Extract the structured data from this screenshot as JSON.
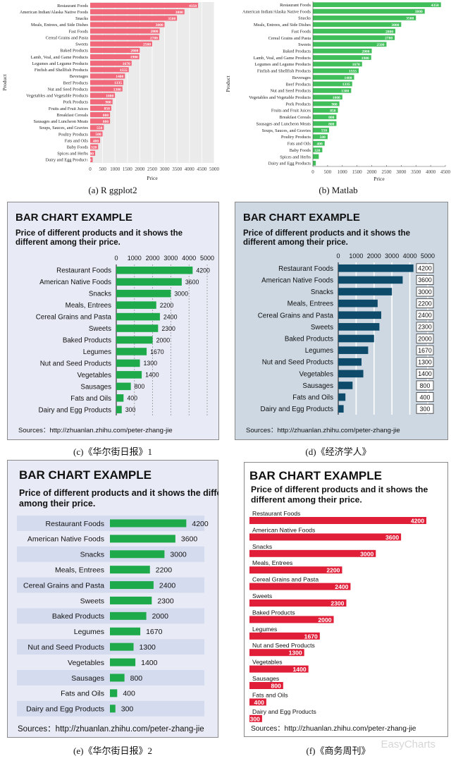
{
  "captions": {
    "a": "(a) R ggplot2",
    "b": "(b) Matlab",
    "c": "(c)《华尔街日报》1",
    "d": "(d)《经济学人》",
    "e": "(e)《华尔街日报》2",
    "f": "(f)《商务周刊》"
  },
  "watermark": "EasyCharts",
  "colors": {
    "ggplot_bar": "#f0687a",
    "ggplot_bg": "#ebebeb",
    "matlab_bar": "#3fbe5a",
    "wsj_bar": "#1eaa4b",
    "wsj_bg": "#e8ebf5",
    "wsj2_stripe": "#d5dbee",
    "economist_bg": "#cdd8e3",
    "economist_bar": "#0e4a6a",
    "bw_bar": "#e01e38"
  },
  "chart_data": [
    {
      "id": "a",
      "type": "bar",
      "orientation": "horizontal",
      "categories": [
        "Restaurant Foods",
        "American Indian/Alaska Native Foods",
        "Snacks",
        "Meals, Entrees, and Side Dishes",
        "Fast Foods",
        "Cereal Grains and Pasta",
        "Sweets",
        "Baked Products",
        "Lamb, Veal, and Game Products",
        "Legumes and Legume Products",
        "Finfish and Shellfish Products",
        "Beverages",
        "Beef Products",
        "Nut and Seed Products",
        "Vegetables and Vegetable Products",
        "Pork Products",
        "Fruits and Fruit Juices",
        "Breakfast Cereals",
        "Sausages and Luncheon Meats",
        "Soups, Sauces, and Gravies",
        "Poultry Products",
        "Fats and Oils",
        "Baby Foods",
        "Spices and Herbs",
        "Dairy and Egg Products"
      ],
      "values": [
        4350,
        3800,
        3500,
        3000,
        2800,
        2780,
        2500,
        2000,
        1980,
        1670,
        1555,
        1400,
        1335,
        1300,
        1000,
        900,
        850,
        800,
        800,
        550,
        500,
        400,
        320,
        200,
        100
      ],
      "labels": [
        "4350",
        "3800",
        "3500",
        "3000",
        "2800",
        "2780",
        "2500",
        "2000",
        "1980",
        "1670",
        "1555",
        "1400",
        "1335",
        "1300",
        "1000",
        "900",
        "850",
        "800",
        "800",
        "550",
        "500",
        "400",
        "320",
        "200",
        "100"
      ],
      "xlabel": "Price",
      "ylabel": "Product",
      "xlim": [
        0,
        5000
      ],
      "xticks": [
        "0",
        "500",
        "1000",
        "1500",
        "2000",
        "2500",
        "3000",
        "3500",
        "4000",
        "4500",
        "5000"
      ],
      "grid": true
    },
    {
      "id": "b",
      "type": "bar",
      "orientation": "horizontal",
      "categories": [
        "Restaurant Foods",
        "American Indian/Alaska Native Foods",
        "Snacks",
        "Meals, Entrees, and Side Dishes",
        "Fast Foods",
        "Cereal Grains and Pasta",
        "Sweets",
        "Baked Products",
        "Lamb, Veal, and Game Products",
        "Legumes and Legume Products",
        "Finfish and Shellfish Products",
        "Beverages",
        "Beef Products",
        "Nut and Seed Products",
        "Vegetables and Vegetable Products",
        "Pork Products",
        "Fruits and Fruit Juices",
        "Breakfast Cereals",
        "Sausages and Luncheon Meats",
        "Soups, Sauces, and Gravies",
        "Poultry Products",
        "Fats and Oils",
        "Baby Foods",
        "Spices and Herbs",
        "Dairy and Egg Products"
      ],
      "values": [
        4350,
        3800,
        3500,
        3000,
        2800,
        2780,
        2500,
        2000,
        1980,
        1670,
        1555,
        1400,
        1335,
        1300,
        1000,
        900,
        850,
        800,
        800,
        550,
        500,
        400,
        320,
        200,
        100
      ],
      "labels": [
        "4350",
        "3800",
        "3500",
        "3000",
        "2800",
        "2780",
        "2500",
        "2000",
        "1980",
        "1670",
        "1555",
        "1400",
        "1335",
        "1300",
        "1000",
        "900",
        "850",
        "800",
        "800",
        "550",
        "500",
        "400",
        "320",
        "",
        ""
      ],
      "xlabel": "Price",
      "ylabel": "Product",
      "xlim": [
        0,
        4500
      ],
      "xticks": [
        "0",
        "500",
        "1000",
        "1500",
        "2000",
        "2500",
        "3000",
        "3500",
        "4000",
        "4500"
      ],
      "grid": false
    },
    {
      "id": "c",
      "type": "bar",
      "orientation": "horizontal",
      "title": "BAR CHART EXAMPLE",
      "subtitle": "Price of different products and it shows the different among their price.",
      "source": "Sources：http://zhuanlan.zhihu.com/peter-zhang-jie",
      "categories": [
        "Restaurant Foods",
        "American Native Foods",
        "Snacks",
        "Meals, Entrees",
        "Cereal Grains and Pasta",
        "Sweets",
        "Baked Products",
        "Legumes",
        "Nut and Seed Products",
        "Vegetables",
        "Sausages",
        "Fats and Oils",
        "Dairy and Egg Products"
      ],
      "values": [
        4200,
        3600,
        3000,
        2200,
        2400,
        2300,
        2000,
        1670,
        1300,
        1400,
        800,
        400,
        300
      ],
      "labels": [
        "4200",
        "3600",
        "3000",
        "2200",
        "2400",
        "2300",
        "2000",
        "1670",
        "1300",
        "1400",
        "800",
        "400",
        "300"
      ],
      "xlim": [
        0,
        5000
      ],
      "xticks": [
        "0",
        "1000",
        "2000",
        "3000",
        "4000",
        "5000"
      ],
      "grid": true
    },
    {
      "id": "d",
      "type": "bar",
      "orientation": "horizontal",
      "title": "BAR CHART EXAMPLE",
      "subtitle": "Price of different products and it shows the different among their price.",
      "source": "Sources：http://zhuanlan.zhihu.com/peter-zhang-jie",
      "categories": [
        "Restaurant Foods",
        "American Native Foods",
        "Snacks",
        "Meals, Entrees",
        "Cereal Grains and Pasta",
        "Sweets",
        "Baked Products",
        "Legumes",
        "Nut and Seed Products",
        "Vegetables",
        "Sausages",
        "Fats and Oils",
        "Dairy and Egg Products"
      ],
      "values": [
        4200,
        3600,
        3000,
        2200,
        2400,
        2300,
        2000,
        1670,
        1300,
        1400,
        800,
        400,
        300
      ],
      "labels": [
        "4200",
        "3600",
        "3000",
        "2200",
        "2400",
        "2300",
        "2000",
        "1670",
        "1300",
        "1400",
        "800",
        "400",
        "300"
      ],
      "xlim": [
        0,
        5000
      ],
      "xticks": [
        "0",
        "1000",
        "2000",
        "3000",
        "4000",
        "5000"
      ],
      "grid": true
    },
    {
      "id": "e",
      "type": "bar",
      "orientation": "horizontal",
      "title": "BAR CHART EXAMPLE",
      "subtitle": "Price of different products and it shows the different among their price.",
      "source": "Sources：http://zhuanlan.zhihu.com/peter-zhang-jie",
      "categories": [
        "Restaurant Foods",
        "American Native Foods",
        "Snacks",
        "Meals, Entrees",
        "Cereal Grains and Pasta",
        "Sweets",
        "Baked Products",
        "Legumes",
        "Nut and Seed Products",
        "Vegetables",
        "Sausages",
        "Fats and Oils",
        "Dairy and Egg Products"
      ],
      "values": [
        4200,
        3600,
        3000,
        2200,
        2400,
        2300,
        2000,
        1670,
        1300,
        1400,
        800,
        400,
        300
      ],
      "labels": [
        "4200",
        "3600",
        "3000",
        "2200",
        "2400",
        "2300",
        "2000",
        "1670",
        "1300",
        "1400",
        "800",
        "400",
        "300"
      ],
      "xlim": [
        0,
        5000
      ],
      "grid": false
    },
    {
      "id": "f",
      "type": "bar",
      "orientation": "horizontal",
      "title": "BAR CHART EXAMPLE",
      "subtitle": "Price of different products and it shows the different among their price.",
      "source": "Sources：http://zhuanlan.zhihu.com/peter-zhang-jie",
      "categories": [
        "Restaurant Foods",
        "American  Native Foods",
        "Snacks",
        "Meals, Entrees",
        "Cereal Grains and Pasta",
        "Sweets",
        "Baked Products",
        "Legumes",
        "Nut and Seed Products",
        "Vegetables",
        "Sausages",
        "Fats and Oils",
        "Dairy and Egg Products"
      ],
      "values": [
        4200,
        3600,
        3000,
        2200,
        2400,
        2300,
        2000,
        1670,
        1300,
        1400,
        800,
        400,
        300
      ],
      "labels": [
        "4200",
        "3600",
        "3000",
        "2200",
        "2400",
        "2300",
        "2000",
        "1670",
        "1300",
        "1400",
        "800",
        "400",
        "300"
      ],
      "xlim": [
        0,
        4200
      ],
      "grid": false
    }
  ]
}
